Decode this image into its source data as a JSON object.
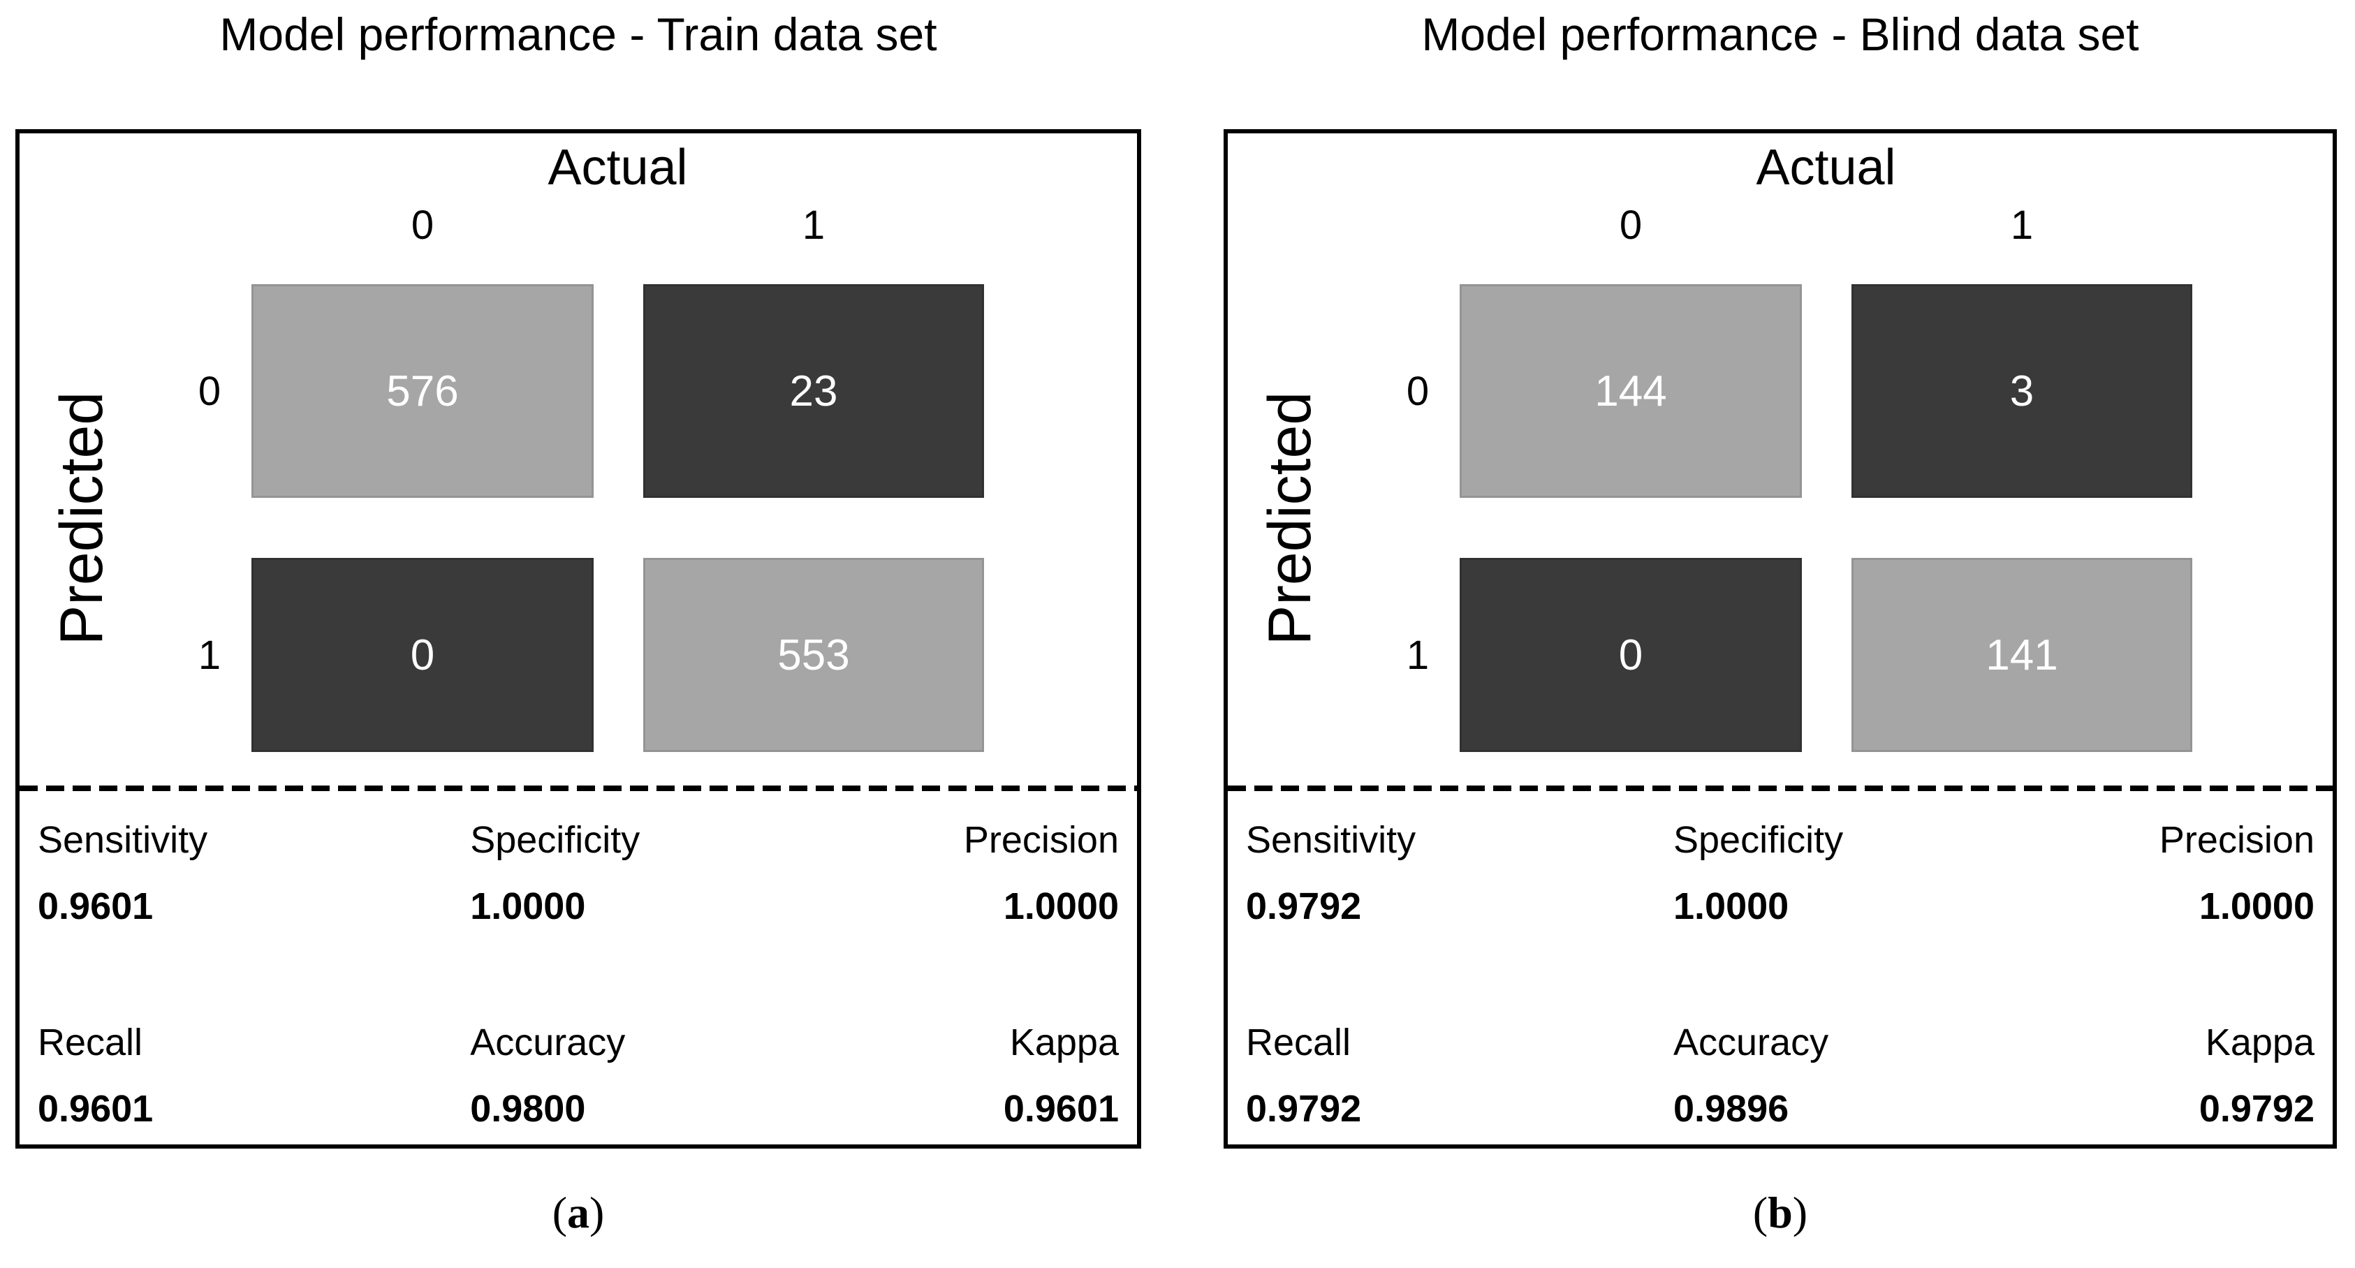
{
  "figure": {
    "colors": {
      "cell_light": "#a6a6a6",
      "cell_dark": "#3a3a3a",
      "cell_value_text": "#ffffff",
      "panel_border": "#000000"
    },
    "panels": [
      {
        "title": "Model performance - Train data set",
        "caption": {
          "open": "(",
          "letter": "a",
          "close": ")"
        },
        "matrix": {
          "x_axis_label": "Actual",
          "y_axis_label": "Predicted",
          "col_labels": [
            "0",
            "1"
          ],
          "row_labels": [
            "0",
            "1"
          ],
          "cells": [
            [
              576,
              23
            ],
            [
              0,
              553
            ]
          ]
        },
        "metrics": [
          {
            "label": "Sensitivity",
            "value": "0.9601"
          },
          {
            "label": "Specificity",
            "value": "1.0000"
          },
          {
            "label": "Precision",
            "value": "1.0000"
          },
          {
            "label": "Recall",
            "value": "0.9601"
          },
          {
            "label": "Accuracy",
            "value": "0.9800"
          },
          {
            "label": "Kappa",
            "value": "0.9601"
          }
        ]
      },
      {
        "title": "Model performance - Blind data set",
        "caption": {
          "open": "(",
          "letter": "b",
          "close": ")"
        },
        "matrix": {
          "x_axis_label": "Actual",
          "y_axis_label": "Predicted",
          "col_labels": [
            "0",
            "1"
          ],
          "row_labels": [
            "0",
            "1"
          ],
          "cells": [
            [
              144,
              3
            ],
            [
              0,
              141
            ]
          ]
        },
        "metrics": [
          {
            "label": "Sensitivity",
            "value": "0.9792"
          },
          {
            "label": "Specificity",
            "value": "1.0000"
          },
          {
            "label": "Precision",
            "value": "1.0000"
          },
          {
            "label": "Recall",
            "value": "0.9792"
          },
          {
            "label": "Accuracy",
            "value": "0.9896"
          },
          {
            "label": "Kappa",
            "value": "0.9792"
          }
        ]
      }
    ]
  },
  "chart_data": [
    {
      "type": "heatmap",
      "title": "Model performance - Train data set",
      "xlabel": "Actual",
      "ylabel": "Predicted",
      "x_categories": [
        "0",
        "1"
      ],
      "y_categories": [
        "0",
        "1"
      ],
      "values": [
        [
          576,
          23
        ],
        [
          0,
          553
        ]
      ],
      "panel_label": "(a)",
      "metrics": {
        "Sensitivity": 0.9601,
        "Specificity": 1.0,
        "Precision": 1.0,
        "Recall": 0.9601,
        "Accuracy": 0.98,
        "Kappa": 0.9601
      },
      "legend_position": "none",
      "grid": false
    },
    {
      "type": "heatmap",
      "title": "Model performance - Blind data set",
      "xlabel": "Actual",
      "ylabel": "Predicted",
      "x_categories": [
        "0",
        "1"
      ],
      "y_categories": [
        "0",
        "1"
      ],
      "values": [
        [
          144,
          3
        ],
        [
          0,
          141
        ]
      ],
      "panel_label": "(b)",
      "metrics": {
        "Sensitivity": 0.9792,
        "Specificity": 1.0,
        "Precision": 1.0,
        "Recall": 0.9792,
        "Accuracy": 0.9896,
        "Kappa": 0.9792
      },
      "legend_position": "none",
      "grid": false
    }
  ]
}
